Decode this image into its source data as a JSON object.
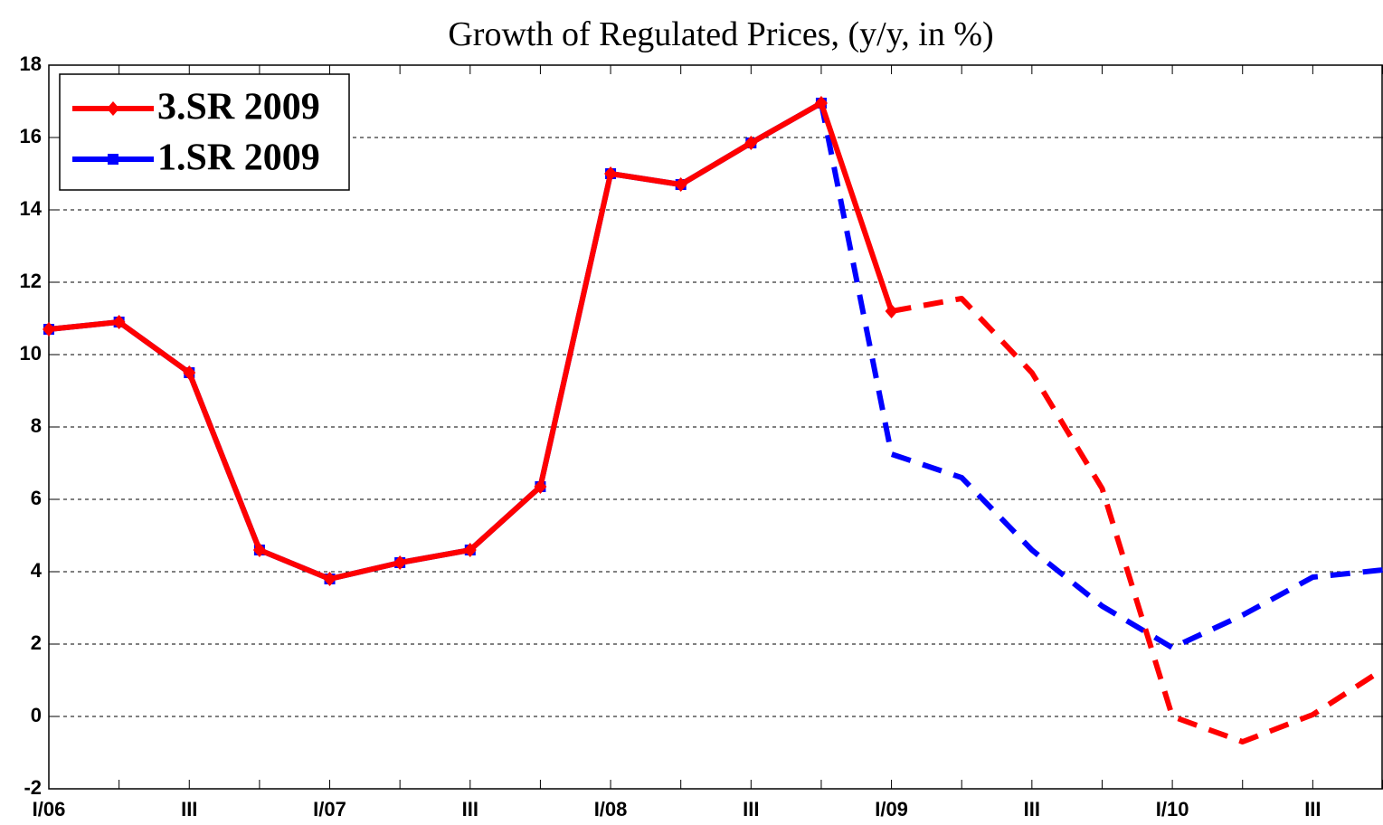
{
  "chart_data": {
    "type": "line",
    "title": "Growth of Regulated Prices, (y/y, in %)",
    "categories": [
      "I/06",
      null,
      "III",
      null,
      "I/07",
      null,
      "III",
      null,
      "I/08",
      null,
      "III",
      null,
      "I/09",
      null,
      "III",
      null,
      "I/10",
      null,
      "III",
      null
    ],
    "series": [
      {
        "name": "3.SR 2009",
        "color": "#ff0000",
        "marker": "diamond",
        "dashed_from": 12,
        "values": [
          10.7,
          10.9,
          9.5,
          4.6,
          3.8,
          4.25,
          4.6,
          6.35,
          15.0,
          14.7,
          15.85,
          16.95,
          11.2,
          11.55,
          9.5,
          6.3,
          0.0,
          -0.7,
          0.05,
          1.3
        ]
      },
      {
        "name": "1.SR 2009",
        "color": "#0000ff",
        "marker": "square",
        "dashed_from": 11,
        "values": [
          10.7,
          10.9,
          9.5,
          4.6,
          3.8,
          4.25,
          4.6,
          6.35,
          15.0,
          14.7,
          15.85,
          16.95,
          7.25,
          6.6,
          4.6,
          3.05,
          1.9,
          2.8,
          3.85,
          4.05
        ]
      }
    ],
    "ylim": [
      -2,
      18
    ],
    "yticks": [
      -2,
      0,
      2,
      4,
      6,
      8,
      10,
      12,
      14,
      16,
      18
    ],
    "grid": true,
    "legend": "upper left"
  }
}
